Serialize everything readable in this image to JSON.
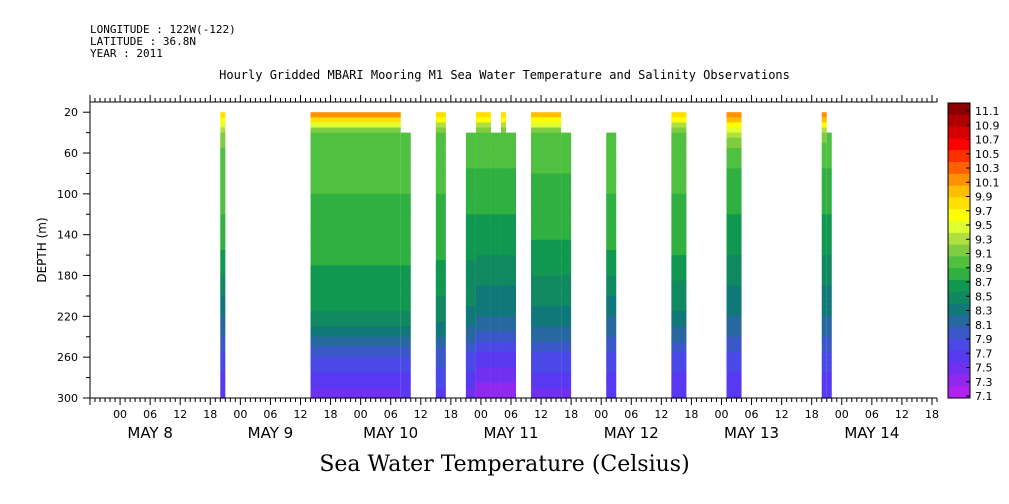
{
  "header": {
    "longitude": "LONGITUDE : 122W(-122)",
    "latitude": "LATITUDE : 36.8N",
    "year": "YEAR : 2011"
  },
  "chart_data": {
    "type": "heatmap",
    "title": "Hourly Gridded MBARI Mooring M1 Sea Water Temperature and Salinity Observations",
    "xlabel": "",
    "x_title": "Sea Water Temperature (Celsius)",
    "ylabel": "DEPTH (m)",
    "ylim": [
      300,
      10
    ],
    "y_reversed": true,
    "y_ticks": [
      20,
      60,
      100,
      140,
      180,
      220,
      260,
      300
    ],
    "x_range_hours": [
      -6,
      163
    ],
    "x_hour_ticks": [
      "00",
      "06",
      "12",
      "18",
      "00",
      "06",
      "12",
      "18",
      "00",
      "06",
      "12",
      "18",
      "00",
      "06",
      "12",
      "18",
      "00",
      "06",
      "12",
      "18",
      "00",
      "06",
      "12",
      "18",
      "00",
      "06",
      "12",
      "18"
    ],
    "days": [
      "MAY  8",
      "MAY  9",
      "MAY 10",
      "MAY 11",
      "MAY 12",
      "MAY 13",
      "MAY 14"
    ],
    "colorbar": {
      "labels": [
        "11.1",
        "10.9",
        "10.7",
        "10.5",
        "10.3",
        "10.1",
        "9.9",
        "9.7",
        "9.5",
        "9.3",
        "9.1",
        "8.9",
        "8.7",
        "8.5",
        "8.3",
        "8.1",
        "7.9",
        "7.7",
        "7.5",
        "7.3",
        "7.1"
      ],
      "colors": [
        "#8b0000",
        "#b00000",
        "#d40000",
        "#ff0000",
        "#ff3000",
        "#ff6000",
        "#ff9000",
        "#ffbf00",
        "#ffe000",
        "#ffff00",
        "#e0ff30",
        "#b0e040",
        "#80cc40",
        "#50c040",
        "#30b040",
        "#109850",
        "#108860",
        "#107878",
        "#2868a0",
        "#3a58c8",
        "#4a48e6",
        "#5838f0",
        "#7030f0",
        "#9028f0",
        "#b020f0"
      ]
    },
    "blocks": [
      {
        "t0": 20,
        "t1": 21,
        "top": 20,
        "profile": [
          9.9,
          9.1,
          9.0,
          8.8,
          8.2,
          7.8,
          7.5
        ]
      },
      {
        "t0": 38,
        "t1": 56,
        "top": 20,
        "profile": [
          10.3,
          9.0,
          8.9,
          8.8,
          8.5,
          7.8,
          7.4
        ]
      },
      {
        "t0": 56,
        "t1": 58,
        "top": 40,
        "profile": [
          9.9,
          9.0,
          8.9,
          8.8,
          8.5,
          7.8,
          7.5
        ]
      },
      {
        "t0": 63,
        "t1": 65,
        "top": 20,
        "profile": [
          9.9,
          9.0,
          8.9,
          8.8,
          8.4,
          7.9,
          7.6
        ]
      },
      {
        "t0": 69,
        "t1": 71,
        "top": 40,
        "profile": [
          9.4,
          9.0,
          8.9,
          8.6,
          8.3,
          7.8,
          7.4
        ]
      },
      {
        "t0": 71,
        "t1": 74,
        "top": 20,
        "profile": [
          9.9,
          9.0,
          8.9,
          8.6,
          8.2,
          7.6,
          7.2
        ]
      },
      {
        "t0": 74,
        "t1": 76,
        "top": 40,
        "profile": [
          9.4,
          9.0,
          8.9,
          8.6,
          8.2,
          7.6,
          7.2
        ]
      },
      {
        "t0": 76,
        "t1": 77,
        "top": 20,
        "profile": [
          9.9,
          9.0,
          8.9,
          8.6,
          8.2,
          7.6,
          7.2
        ]
      },
      {
        "t0": 77,
        "t1": 79,
        "top": 40,
        "profile": [
          9.4,
          9.0,
          8.9,
          8.6,
          8.2,
          7.6,
          7.2
        ]
      },
      {
        "t0": 82,
        "t1": 88,
        "top": 20,
        "profile": [
          10.1,
          9.0,
          8.9,
          8.7,
          8.3,
          7.8,
          7.4
        ]
      },
      {
        "t0": 88,
        "t1": 90,
        "top": 40,
        "profile": [
          9.5,
          9.0,
          8.9,
          8.7,
          8.3,
          7.8,
          7.4
        ]
      },
      {
        "t0": 97,
        "t1": 99,
        "top": 40,
        "profile": [
          9.3,
          9.0,
          8.9,
          8.8,
          8.2,
          7.8,
          7.5
        ]
      },
      {
        "t0": 110,
        "t1": 113,
        "top": 20,
        "profile": [
          9.9,
          9.0,
          8.9,
          8.8,
          8.3,
          7.8,
          7.5
        ]
      },
      {
        "t0": 121,
        "t1": 124,
        "top": 20,
        "profile": [
          10.3,
          9.3,
          8.9,
          8.6,
          8.2,
          7.8,
          7.5
        ]
      },
      {
        "t0": 140,
        "t1": 141,
        "top": 20,
        "profile": [
          10.3,
          9.2,
          8.9,
          8.6,
          8.2,
          7.8,
          7.5
        ]
      },
      {
        "t0": 141,
        "t1": 142,
        "top": 40,
        "profile": [
          9.5,
          9.0,
          8.9,
          8.6,
          8.2,
          7.8,
          7.5
        ]
      }
    ]
  }
}
